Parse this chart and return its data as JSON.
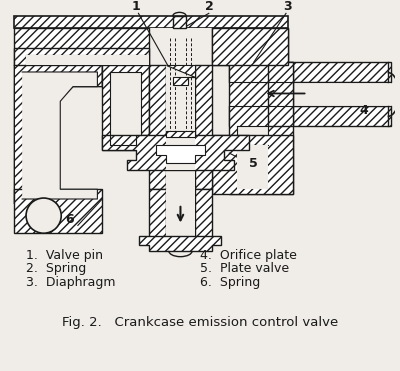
{
  "bg_color": "#f0ede8",
  "line_color": "#1a1a1a",
  "title": "Fig. 2.   Crankcase emission control valve",
  "title_fontsize": 9.5,
  "legend_left": [
    "1.  Valve pin",
    "2.  Spring",
    "3.  Diaphragm"
  ],
  "legend_right": [
    "4.  Orifice plate",
    "5.  Plate valve",
    "6.  Spring"
  ],
  "legend_fontsize": 9,
  "fig_width": 4.0,
  "fig_height": 3.71,
  "dpi": 100
}
